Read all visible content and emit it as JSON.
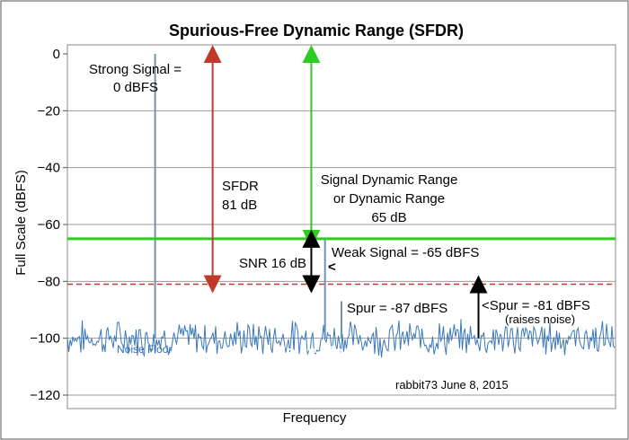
{
  "chart_data": {
    "type": "line",
    "title": "Spurious-Free Dynamic Range (SFDR)",
    "xlabel": "Frequency",
    "ylabel": "Full Scale (dBFS)",
    "ylim": [
      -125,
      0
    ],
    "y_ticks": [
      0,
      -20,
      -40,
      -60,
      -80,
      -100,
      -120
    ],
    "y_tick_labels": [
      "0",
      "−20",
      "−40",
      "−60",
      "−80",
      "−100",
      "−120"
    ],
    "grid": true,
    "noise_floor_level": -100,
    "signals": [
      {
        "name": "Strong Signal",
        "x_rel": 0.16,
        "dbfs": 0
      },
      {
        "name": "Weak Signal",
        "x_rel": 0.47,
        "dbfs": -65
      },
      {
        "name": "Spur",
        "x_rel": 0.5,
        "dbfs": -87
      }
    ],
    "reference_lines": [
      {
        "level": -65,
        "style": "solid",
        "color": "#2ecc1f"
      },
      {
        "level": -81,
        "style": "dashed",
        "color": "#c0392b"
      }
    ],
    "measurements": [
      {
        "label": "SFDR",
        "from": 0,
        "to": -81,
        "color": "#c0392b"
      },
      {
        "label": "Signal Dynamic Range",
        "from": 0,
        "to": -65,
        "color": "#2ecc1f"
      },
      {
        "label": "SNR",
        "from": -65,
        "to": -81,
        "color": "#000000"
      },
      {
        "label": "Spur",
        "from": -100,
        "to": -81,
        "color": "#000000"
      }
    ]
  },
  "annotations": {
    "strong_signal_line1": "Strong Signal =",
    "strong_signal_line2": "0 dBFS",
    "sfdr_line1": "SFDR",
    "sfdr_line2": "81 dB",
    "sdr_line1": "Signal Dynamic Range",
    "sdr_line2": "or Dynamic Range",
    "sdr_line3": "65 dB",
    "weak_signal": "Weak Signal = -65 dBFS",
    "weak_arrow": "<",
    "snr": "SNR 16 dB",
    "spur_87": "Spur = -87 dBFS",
    "spur_81": "<Spur = -81 dBFS",
    "raises_noise": "(raises noise)",
    "noise_floor": "Noise Floor",
    "noise_floor_small": "Noise Floor",
    "credit": "rabbit73  June 8, 2015"
  },
  "colors": {
    "green": "#2ecc1f",
    "red": "#c0392b",
    "noise": "#3b78b8",
    "signal": "#6f93b6",
    "grid": "#9a9a9a"
  }
}
